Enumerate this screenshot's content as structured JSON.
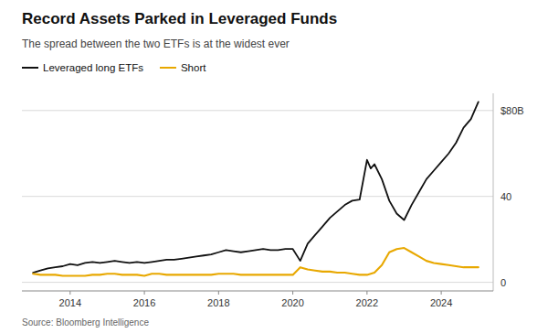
{
  "chart_data": {
    "type": "line",
    "title": "Record Assets Parked in Leveraged Funds",
    "subtitle": "The spread between the two ETFs is at the widest ever",
    "source": "Source: Bloomberg Intelligence",
    "legend": "upper left",
    "grid": true,
    "xlim": [
      2012.7,
      2025.4
    ],
    "xticks": [
      2014,
      2016,
      2018,
      2020,
      2022,
      2024
    ],
    "ylim": [
      -4,
      88
    ],
    "yticks": [
      0,
      40,
      {
        "value": 80,
        "label": "$80B"
      }
    ],
    "series": [
      {
        "name": "Leveraged long ETFs",
        "color": "#111111",
        "x": [
          2013.0,
          2013.2,
          2013.4,
          2013.6,
          2013.8,
          2014.0,
          2014.2,
          2014.4,
          2014.6,
          2014.8,
          2015.0,
          2015.2,
          2015.4,
          2015.6,
          2015.8,
          2016.0,
          2016.2,
          2016.4,
          2016.6,
          2016.8,
          2017.0,
          2017.2,
          2017.4,
          2017.6,
          2017.8,
          2018.0,
          2018.2,
          2018.4,
          2018.6,
          2018.8,
          2019.0,
          2019.2,
          2019.4,
          2019.6,
          2019.8,
          2020.0,
          2020.2,
          2020.4,
          2020.6,
          2020.8,
          2021.0,
          2021.2,
          2021.4,
          2021.6,
          2021.8,
          2022.0,
          2022.1,
          2022.2,
          2022.4,
          2022.6,
          2022.8,
          2023.0,
          2023.2,
          2023.4,
          2023.6,
          2023.8,
          2024.0,
          2024.2,
          2024.4,
          2024.6,
          2024.8,
          2025.0
        ],
        "values": [
          4.5,
          5.5,
          6.5,
          7.0,
          7.5,
          8.5,
          8.0,
          9.0,
          9.5,
          9.0,
          9.5,
          10.0,
          9.5,
          9.0,
          9.5,
          9.0,
          9.5,
          10.0,
          10.5,
          10.5,
          11.0,
          11.5,
          12.0,
          12.5,
          13.0,
          14.0,
          15.0,
          14.5,
          14.0,
          14.5,
          15.0,
          15.5,
          15.0,
          15.0,
          15.5,
          15.5,
          10.0,
          18.0,
          22.0,
          26.0,
          30.0,
          33.0,
          36.0,
          38.0,
          38.5,
          57.0,
          53.0,
          55.0,
          48.0,
          38.0,
          32.0,
          29.0,
          36.0,
          42.0,
          48.0,
          52.0,
          56.0,
          60.0,
          65.0,
          72.0,
          76.0,
          84.0
        ]
      },
      {
        "name": "Short",
        "color": "#E8A800",
        "x": [
          2013.0,
          2013.2,
          2013.4,
          2013.6,
          2013.8,
          2014.0,
          2014.2,
          2014.4,
          2014.6,
          2014.8,
          2015.0,
          2015.2,
          2015.4,
          2015.6,
          2015.8,
          2016.0,
          2016.2,
          2016.4,
          2016.6,
          2016.8,
          2017.0,
          2017.2,
          2017.4,
          2017.6,
          2017.8,
          2018.0,
          2018.2,
          2018.4,
          2018.6,
          2018.8,
          2019.0,
          2019.2,
          2019.4,
          2019.6,
          2019.8,
          2020.0,
          2020.2,
          2020.4,
          2020.6,
          2020.8,
          2021.0,
          2021.2,
          2021.4,
          2021.6,
          2021.8,
          2022.0,
          2022.2,
          2022.4,
          2022.6,
          2022.8,
          2023.0,
          2023.2,
          2023.4,
          2023.6,
          2023.8,
          2024.0,
          2024.2,
          2024.4,
          2024.6,
          2024.8,
          2025.0
        ],
        "values": [
          4.0,
          3.5,
          3.5,
          3.5,
          3.0,
          3.0,
          3.0,
          3.0,
          3.5,
          3.5,
          4.0,
          4.0,
          3.5,
          3.5,
          3.5,
          3.0,
          4.0,
          4.0,
          3.5,
          3.5,
          3.5,
          3.5,
          3.5,
          3.5,
          3.5,
          4.0,
          4.0,
          4.0,
          3.5,
          3.5,
          3.5,
          3.5,
          3.5,
          3.5,
          3.5,
          3.5,
          7.0,
          6.0,
          5.5,
          5.0,
          5.0,
          4.5,
          4.5,
          4.0,
          3.5,
          3.5,
          4.5,
          8.0,
          14.0,
          15.5,
          16.0,
          14.0,
          12.0,
          10.0,
          9.0,
          8.5,
          8.0,
          7.5,
          7.0,
          7.0,
          7.0
        ]
      }
    ]
  }
}
